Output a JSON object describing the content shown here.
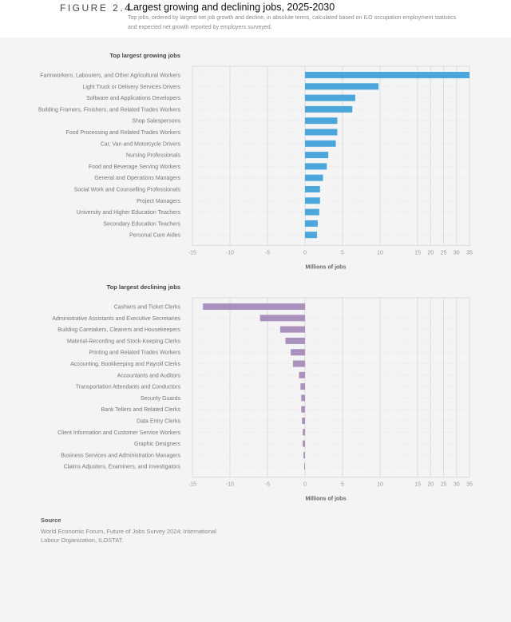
{
  "figure": {
    "number": "FIGURE 2.4",
    "title": "Largest growing and declining jobs, 2025-2030",
    "subtitle": "Top jobs, ordered by largest net job growth and decline, in absolute terms, calculated based on ILO occupation employment statistics and expected net growth  reported by employers surveyed."
  },
  "source": {
    "heading": "Source",
    "text": "World Economic Forum, Future of Jobs Survey 2024; International Labour Organization, ILOSTAT."
  },
  "chart_data": [
    {
      "type": "bar",
      "orientation": "horizontal",
      "title": "Top largest growing jobs",
      "xlabel": "Millions of jobs",
      "xlim": [
        -15,
        35
      ],
      "xticks": [
        -15,
        -10,
        -5,
        0,
        5,
        10,
        15,
        20,
        25,
        30,
        35
      ],
      "x_scale": "piecewise: linear from -15 to 15, compressed from 15 to 35",
      "grid": true,
      "color": "#4ba7db",
      "categories": [
        "Farmworkers, Labourers, and Other Agricultural Workers",
        "Light Truck or Delivery Services Drivers",
        "Software and Applications Developers",
        "Building Framers, Finishers, and Related Trades Workers",
        "Shop Salespersons",
        "Food Processing and Related Trades Workers",
        "Car, Van and Motorcycle Drivers",
        "Nursing Professionals",
        "Food and Beverage Serving Workers",
        "General and Operations Managers",
        "Social Work and Counselling Professionals",
        "Project Managers",
        "University and Higher Education Teachers",
        "Secondary Education Teachers",
        "Personal Care Aides"
      ],
      "values": [
        35,
        9.8,
        6.7,
        6.3,
        4.3,
        4.3,
        4.1,
        3.1,
        2.9,
        2.4,
        2.0,
        2.0,
        1.9,
        1.7,
        1.6
      ]
    },
    {
      "type": "bar",
      "orientation": "horizontal",
      "title": "Top largest declining jobs",
      "xlabel": "Millions of jobs",
      "xlim": [
        -15,
        35
      ],
      "xticks": [
        -15,
        -10,
        -5,
        0,
        5,
        10,
        15,
        20,
        25,
        30,
        35
      ],
      "x_scale": "piecewise: linear from -15 to 15, compressed from 15 to 35",
      "grid": true,
      "color": "#a990bd",
      "categories": [
        "Cashiers and Ticket Clerks",
        "Administrative Assistants and Executive Secretaries",
        "Building Caretakers, Cleaners and Housekeepers",
        "Material-Recording and Stock-Keeping Clerks",
        "Printing and Related Trades Workers",
        "Accounting, Bookkeeping and Payroll Clerks",
        "Accountants and Auditors",
        "Transportation Attendants and Conductors",
        "Security Guards",
        "Bank Tellers and Related Clerks",
        "Data Entry Clerks",
        "Client Information and Customer Service Workers",
        "Graphic Designers",
        "Business Services and Administration Managers",
        "Claims Adjusters, Examiners, and Investigators"
      ],
      "values": [
        -13.6,
        -6.0,
        -3.3,
        -2.6,
        -1.9,
        -1.6,
        -0.8,
        -0.6,
        -0.5,
        -0.5,
        -0.4,
        -0.3,
        -0.3,
        -0.2,
        -0.1
      ]
    }
  ]
}
